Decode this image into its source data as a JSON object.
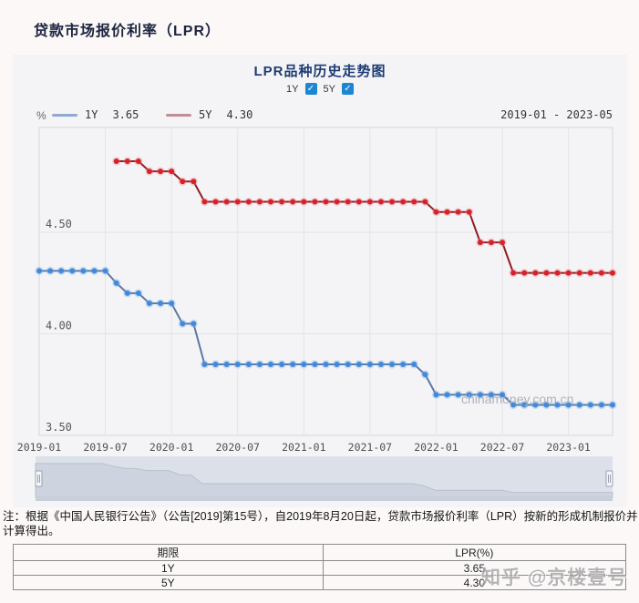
{
  "page": {
    "title": "贷款市场报价利率（LPR）",
    "note": "注：根据《中国人民银行公告》（公告[2019]第15号），自2019年8月20日起，贷款市场报价利率（LPR）按新的形成机制报价并计算得出。",
    "watermark": "知乎 @京楼壹号"
  },
  "chart": {
    "title": "LPR品种历史走势图",
    "unit_label": "%",
    "date_range": "2019-01 - 2023-05",
    "watermark": "chinamoney.com.cn",
    "toggles": [
      {
        "label": "1Y",
        "checked": true
      },
      {
        "label": "5Y",
        "checked": true
      }
    ],
    "legend": [
      {
        "label": "1Y",
        "value": "3.65",
        "color": "#91a9d2"
      },
      {
        "label": "5Y",
        "value": "4.30",
        "color": "#c08e98"
      }
    ]
  },
  "chart_data": {
    "type": "line",
    "title": "LPR品种历史走势图",
    "xlabel": "",
    "ylabel": "%",
    "ylim": [
      3.5,
      5.0
    ],
    "yticks": [
      4.5,
      4.0,
      3.5
    ],
    "x_start": "2019-01",
    "x_end": "2023-05",
    "xtick_labels": [
      "2019-01",
      "2019-07",
      "2020-01",
      "2020-07",
      "2021-01",
      "2021-07",
      "2022-01",
      "2022-07",
      "2023-01"
    ],
    "grid": true,
    "legend_position": "top-left",
    "series": [
      {
        "name": "1Y",
        "start_index": 0,
        "color": "#4488d8",
        "line_color": "#5b79a3",
        "halo": "rgba(110,175,235,0.35)",
        "values": [
          4.31,
          4.31,
          4.31,
          4.31,
          4.31,
          4.31,
          4.31,
          4.25,
          4.2,
          4.2,
          4.15,
          4.15,
          4.15,
          4.05,
          4.05,
          3.85,
          3.85,
          3.85,
          3.85,
          3.85,
          3.85,
          3.85,
          3.85,
          3.85,
          3.85,
          3.85,
          3.85,
          3.85,
          3.85,
          3.85,
          3.85,
          3.85,
          3.85,
          3.85,
          3.85,
          3.8,
          3.7,
          3.7,
          3.7,
          3.7,
          3.7,
          3.7,
          3.7,
          3.65,
          3.65,
          3.65,
          3.65,
          3.65,
          3.65,
          3.65,
          3.65,
          3.65,
          3.65
        ]
      },
      {
        "name": "5Y",
        "start_index": 7,
        "color": "#d6232b",
        "line_color": "#8f1d22",
        "halo": "rgba(235,130,140,0.35)",
        "values": [
          4.85,
          4.85,
          4.85,
          4.8,
          4.8,
          4.8,
          4.75,
          4.75,
          4.65,
          4.65,
          4.65,
          4.65,
          4.65,
          4.65,
          4.65,
          4.65,
          4.65,
          4.65,
          4.65,
          4.65,
          4.65,
          4.65,
          4.65,
          4.65,
          4.65,
          4.65,
          4.65,
          4.65,
          4.65,
          4.6,
          4.6,
          4.6,
          4.6,
          4.45,
          4.45,
          4.45,
          4.3,
          4.3,
          4.3,
          4.3,
          4.3,
          4.3,
          4.3,
          4.3,
          4.3,
          4.3
        ]
      }
    ]
  },
  "table": {
    "headers": [
      "期限",
      "LPR(%)"
    ],
    "rows": [
      [
        "1Y",
        "3.65"
      ],
      [
        "5Y",
        "4.30"
      ]
    ]
  }
}
